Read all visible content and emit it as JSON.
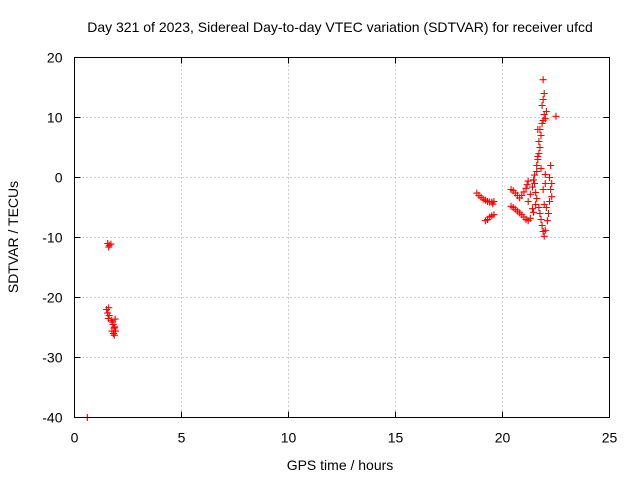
{
  "chart_data": {
    "type": "scatter",
    "title": "Day 321 of 2023, Sidereal Day-to-day VTEC variation (SDTVAR) for receiver ufcd",
    "xlabel": "GPS time / hours",
    "ylabel": "SDTVAR / TECUs",
    "xlim": [
      0,
      25
    ],
    "ylim": [
      -40,
      20
    ],
    "x_ticks": [
      0,
      5,
      10,
      15,
      20,
      25
    ],
    "y_ticks": [
      -40,
      -30,
      -20,
      -10,
      0,
      10,
      20
    ],
    "x_tick_labels": [
      "0",
      "5",
      "10",
      "15",
      "20",
      "25"
    ],
    "y_tick_labels": [
      "-40",
      "-30",
      "-20",
      "-10",
      "0",
      "10",
      "20"
    ],
    "grid": true,
    "marker": "+",
    "marker_color": "#ff0000",
    "series": [
      {
        "name": "SDTVAR",
        "points": [
          [
            0.6,
            -40.0
          ],
          [
            1.55,
            -11.0
          ],
          [
            1.62,
            -11.3
          ],
          [
            1.7,
            -11.1
          ],
          [
            1.6,
            -11.6
          ],
          [
            1.5,
            -22.0
          ],
          [
            1.55,
            -22.6
          ],
          [
            1.62,
            -23.0
          ],
          [
            1.6,
            -21.7
          ],
          [
            1.58,
            -23.5
          ],
          [
            1.72,
            -23.8
          ],
          [
            1.8,
            -24.5
          ],
          [
            1.85,
            -25.1
          ],
          [
            1.75,
            -25.6
          ],
          [
            1.9,
            -23.6
          ],
          [
            1.82,
            -26.0
          ],
          [
            1.88,
            -24.9
          ],
          [
            1.92,
            -25.6
          ],
          [
            1.78,
            -24.1
          ],
          [
            1.86,
            -26.3
          ],
          [
            18.8,
            -2.6
          ],
          [
            18.9,
            -3.0
          ],
          [
            19.0,
            -3.3
          ],
          [
            19.1,
            -3.6
          ],
          [
            19.2,
            -3.8
          ],
          [
            19.3,
            -4.0
          ],
          [
            19.4,
            -4.1
          ],
          [
            19.5,
            -4.1
          ],
          [
            19.6,
            -4.0
          ],
          [
            19.55,
            -4.4
          ],
          [
            19.2,
            -7.2
          ],
          [
            19.3,
            -7.0
          ],
          [
            19.4,
            -6.6
          ],
          [
            19.5,
            -6.4
          ],
          [
            19.6,
            -6.2
          ],
          [
            20.4,
            -2.0
          ],
          [
            20.5,
            -2.2
          ],
          [
            20.6,
            -2.6
          ],
          [
            20.7,
            -3.0
          ],
          [
            20.8,
            -3.4
          ],
          [
            20.9,
            -3.0
          ],
          [
            21.0,
            -2.4
          ],
          [
            21.1,
            -1.8
          ],
          [
            21.15,
            -1.2
          ],
          [
            21.2,
            -0.6
          ],
          [
            20.4,
            -4.8
          ],
          [
            20.5,
            -5.0
          ],
          [
            20.6,
            -5.3
          ],
          [
            20.7,
            -5.6
          ],
          [
            20.8,
            -5.9
          ],
          [
            20.9,
            -6.2
          ],
          [
            21.0,
            -6.6
          ],
          [
            21.1,
            -7.0
          ],
          [
            21.2,
            -7.2
          ],
          [
            21.3,
            -6.8
          ],
          [
            21.2,
            -4.0
          ],
          [
            21.3,
            -2.8
          ],
          [
            21.4,
            -1.6
          ],
          [
            21.45,
            -0.4
          ],
          [
            21.5,
            0.4
          ],
          [
            21.4,
            -5.2
          ],
          [
            21.45,
            -5.8
          ],
          [
            21.55,
            -4.5
          ],
          [
            21.6,
            1.0
          ],
          [
            21.6,
            2.0
          ],
          [
            21.65,
            3.0
          ],
          [
            21.7,
            4.0
          ],
          [
            21.75,
            5.0
          ],
          [
            21.7,
            6.0
          ],
          [
            21.8,
            7.0
          ],
          [
            21.75,
            8.0
          ],
          [
            21.85,
            9.0
          ],
          [
            21.9,
            9.5
          ],
          [
            21.95,
            10.5
          ],
          [
            22.0,
            9.8
          ],
          [
            21.5,
            -1.0
          ],
          [
            21.55,
            -2.5
          ],
          [
            21.6,
            -3.5
          ],
          [
            21.7,
            -5.0
          ],
          [
            21.75,
            -6.0
          ],
          [
            21.8,
            -7.0
          ],
          [
            21.85,
            -8.0
          ],
          [
            21.9,
            -9.0
          ],
          [
            21.95,
            -9.8
          ],
          [
            22.0,
            -8.8
          ],
          [
            21.9,
            -2.0
          ],
          [
            21.95,
            -4.5
          ],
          [
            22.0,
            -1.0
          ],
          [
            22.05,
            -5.0
          ],
          [
            22.1,
            -7.2
          ],
          [
            22.15,
            -6.0
          ],
          [
            22.2,
            -4.0
          ],
          [
            22.25,
            -2.0
          ],
          [
            22.2,
            0.0
          ],
          [
            22.25,
            2.0
          ],
          [
            22.3,
            -3.2
          ],
          [
            22.3,
            -1.0
          ],
          [
            22.0,
            0.5
          ],
          [
            21.8,
            1.5
          ],
          [
            21.65,
            3.5
          ],
          [
            21.65,
            8.0
          ],
          [
            21.85,
            12.0
          ],
          [
            21.9,
            13.0
          ],
          [
            21.95,
            14.0
          ],
          [
            21.9,
            16.3
          ],
          [
            22.05,
            11.0
          ],
          [
            22.5,
            10.2
          ]
        ]
      }
    ]
  }
}
